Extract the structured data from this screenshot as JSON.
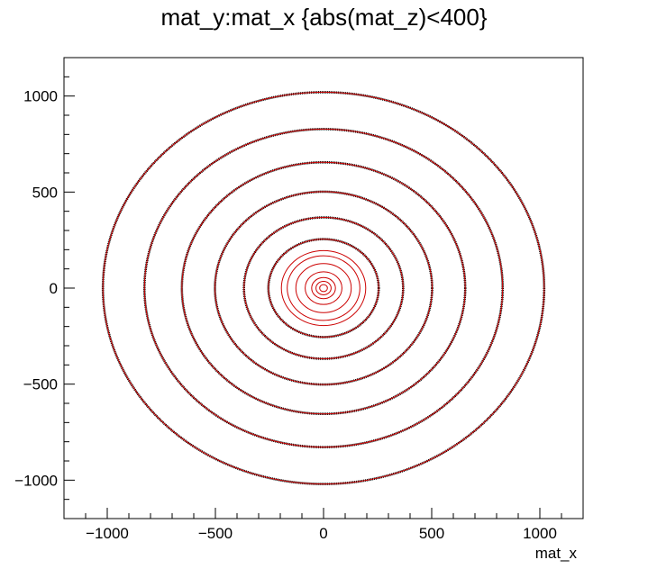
{
  "chart_data": {
    "type": "scatter",
    "title": "mat_y:mat_x {abs(mat_z)<400}",
    "xlabel": "mat_x",
    "ylabel": "",
    "xlim": [
      -1200,
      1200
    ],
    "ylim": [
      -1200,
      1200
    ],
    "x_ticks": [
      -1000,
      -500,
      0,
      500,
      1000
    ],
    "y_ticks": [
      -1000,
      -500,
      0,
      500,
      1000
    ],
    "x_tick_labels": [
      "−1000",
      "−500",
      "0",
      "500",
      "1000"
    ],
    "y_tick_labels": [
      "−1000",
      "−500",
      "0",
      "500",
      "1000"
    ],
    "grid": false,
    "legend": "none",
    "series": [
      {
        "style": "black points, rings",
        "color": "#000000",
        "ring_radii": [
          1020,
          828,
          655,
          502,
          368,
          255
        ]
      },
      {
        "style": "red outlines, rings",
        "color": "#cc0000",
        "ring_radii": [
          1020,
          828,
          655,
          502,
          368,
          255,
          195,
          168,
          128,
          85,
          55,
          35,
          18
        ]
      }
    ]
  }
}
